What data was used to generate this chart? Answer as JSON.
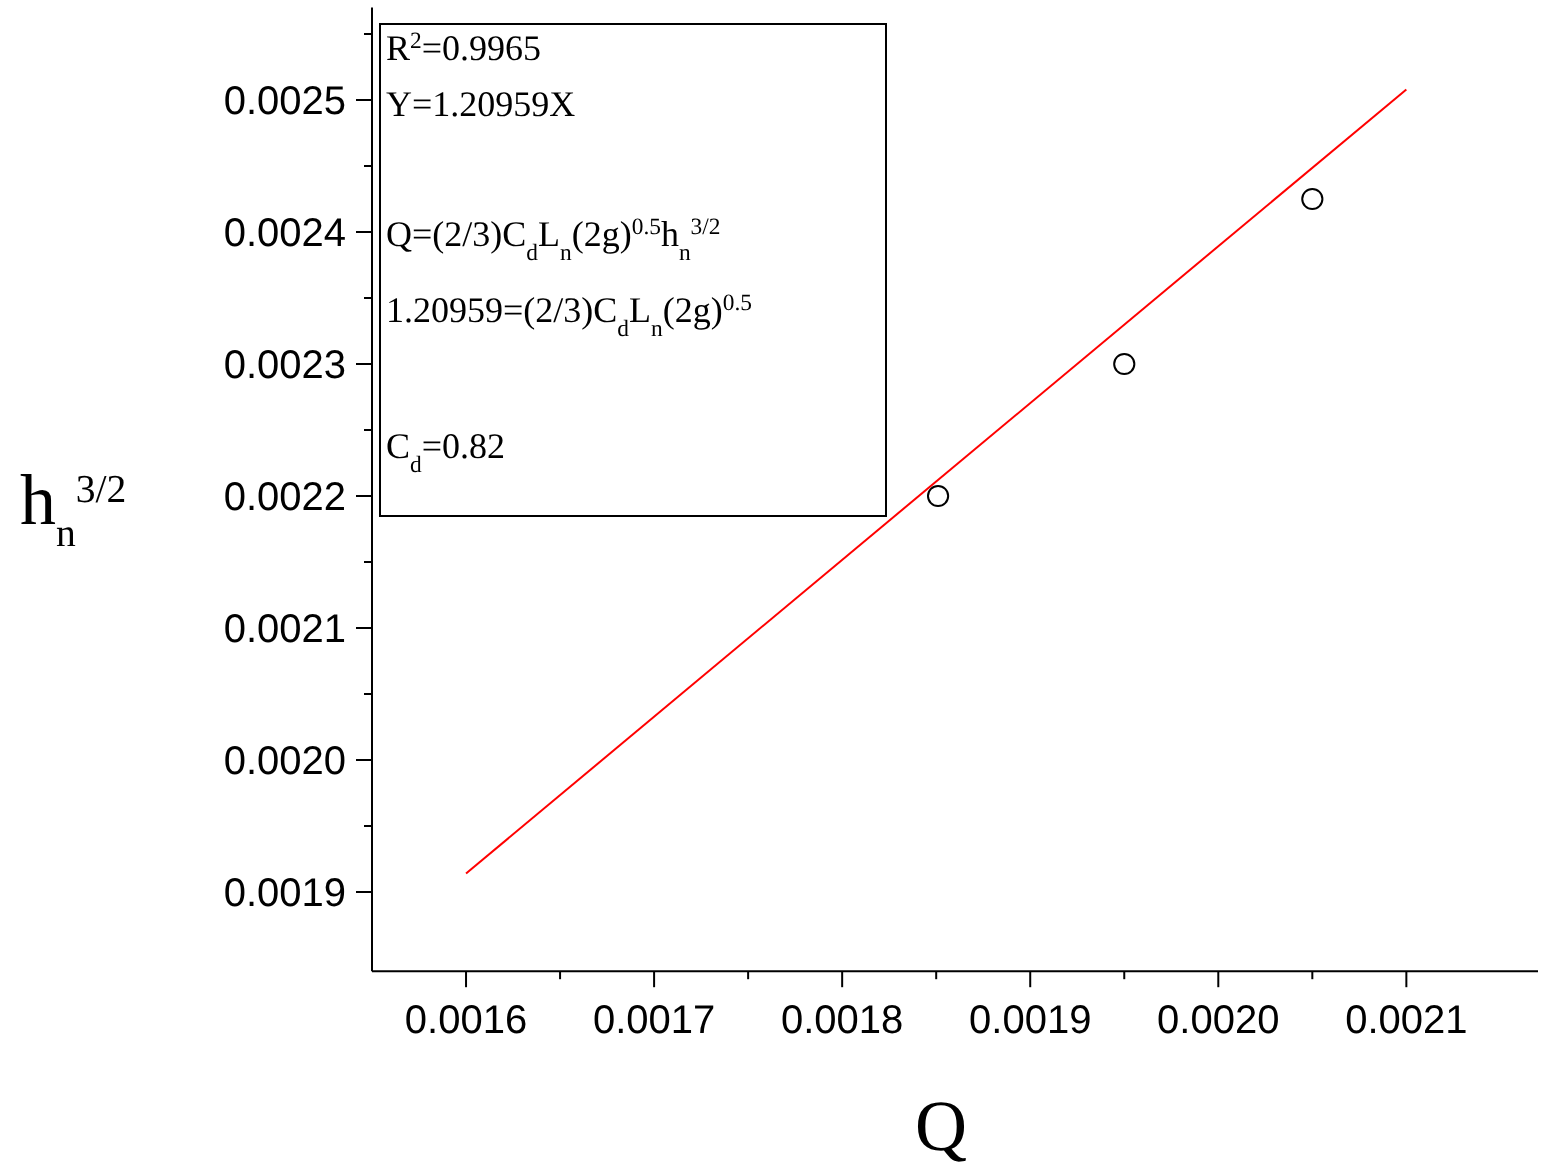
{
  "chart_data": {
    "type": "scatter",
    "xlabel": "Q",
    "ylabel": "h$_{n}$$^{3/2}$",
    "annotations": [
      "R$^{2}$=0.9965",
      "Y=1.20959X",
      "Q=(2/3)C$_{d}$L$_{n}$(2g)$^{0.5}$h$_{n}$$^{3/2}$",
      "1.20959=(2/3)C$_{d}$L$_{n}$(2g)$^{0.5}$",
      "C$_{d}$=0.82"
    ],
    "series": [
      {
        "color": "#000000",
        "marker": "circle",
        "x": [
          0.001851,
          0.00195,
          0.00205
        ],
        "values": [
          0.0022,
          0.0023,
          0.002425
        ]
      },
      {
        "type": "line",
        "color": "#ff0000",
        "marker": "none",
        "x": [
          0.0016,
          0.0021
        ],
        "values": [
          0.001914,
          0.002508
        ]
      }
    ],
    "xlim": [
      0.00155,
      0.00217
    ],
    "ylim": [
      0.00184,
      0.00257
    ],
    "xticks": [
      {
        "value": 0.0016,
        "label": "0.0016"
      },
      {
        "value": 0.00165,
        "label": null
      },
      {
        "value": 0.0017,
        "label": "0.0017"
      },
      {
        "value": 0.00175,
        "label": null
      },
      {
        "value": 0.0018,
        "label": "0.0018"
      },
      {
        "value": 0.00185,
        "label": null
      },
      {
        "value": 0.0019,
        "label": "0.0019"
      },
      {
        "value": 0.00195,
        "label": null
      },
      {
        "value": 0.002,
        "label": "0.0020"
      },
      {
        "value": 0.00205,
        "label": null
      },
      {
        "value": 0.0021,
        "label": "0.0021"
      }
    ],
    "yticks": [
      {
        "value": 0.0019,
        "label": "0.0019"
      },
      {
        "value": 0.00195,
        "label": null
      },
      {
        "value": 0.002,
        "label": "0.0020"
      },
      {
        "value": 0.00205,
        "label": null
      },
      {
        "value": 0.0021,
        "label": "0.0021"
      },
      {
        "value": 0.00215,
        "label": null
      },
      {
        "value": 0.0022,
        "label": "0.0022"
      },
      {
        "value": 0.00225,
        "label": null
      },
      {
        "value": 0.0023,
        "label": "0.0023"
      },
      {
        "value": 0.00235,
        "label": null
      },
      {
        "value": 0.0024,
        "label": "0.0024"
      },
      {
        "value": 0.00245,
        "label": null
      },
      {
        "value": 0.0025,
        "label": "0.0025"
      },
      {
        "value": 0.00255,
        "label": null
      }
    ],
    "grid": false
  }
}
